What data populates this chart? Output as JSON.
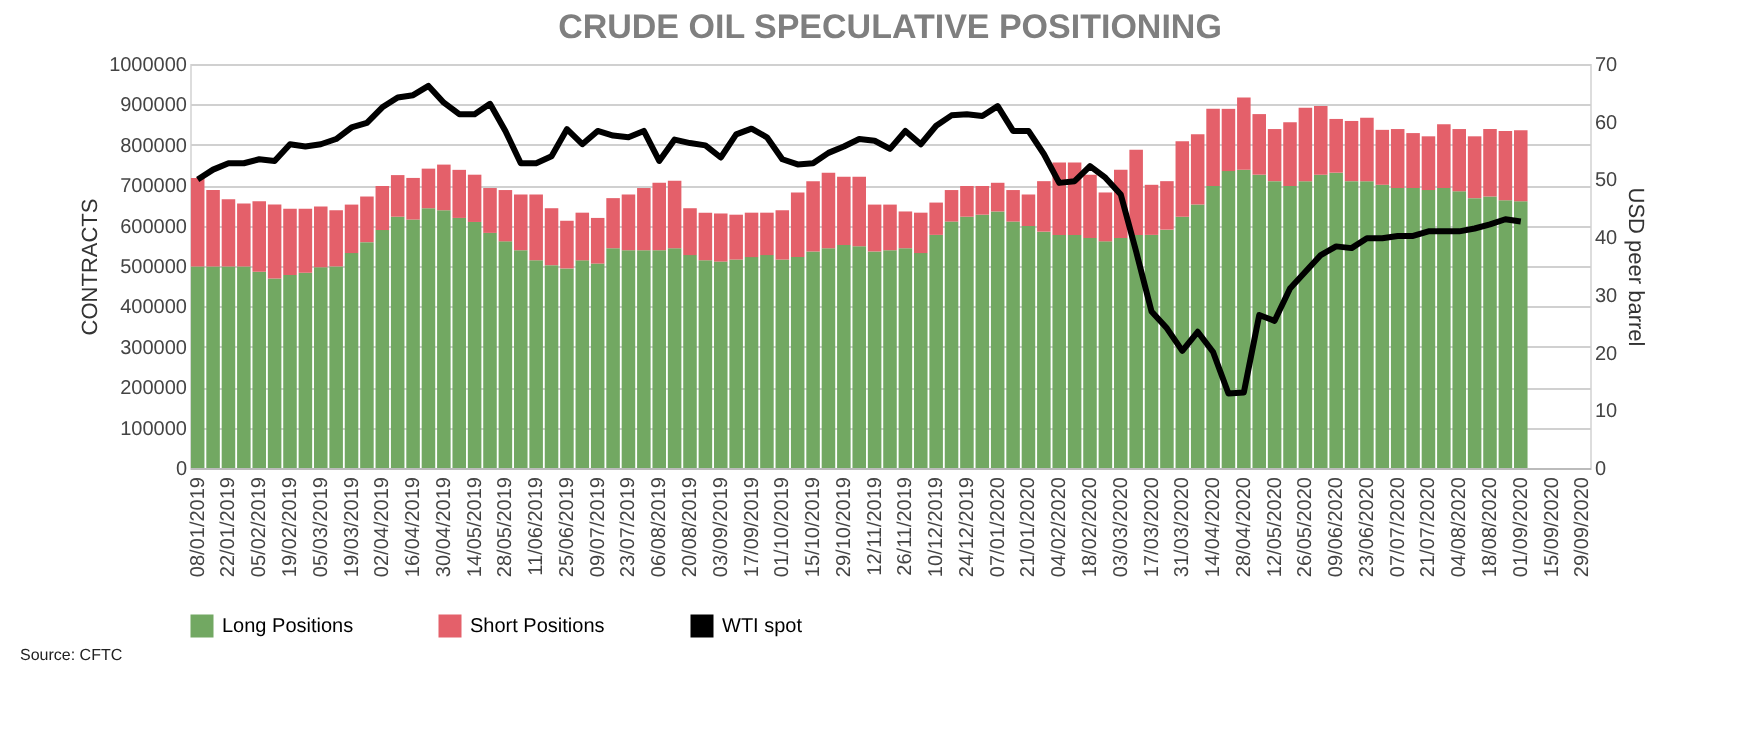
{
  "chart_data": {
    "type": "bar",
    "title": "CRUDE OIL SPECULATIVE POSITIONING",
    "ylabel": "CONTRACTS",
    "y2label": "USD peer barrel",
    "stacked": true,
    "legend": "bottom",
    "grid": "y",
    "annotations": [
      "Source: CFTC"
    ],
    "ylim": [
      0,
      1000000
    ],
    "yticks": [
      0,
      100000,
      200000,
      300000,
      400000,
      500000,
      600000,
      700000,
      800000,
      900000,
      1000000
    ],
    "y2lim": [
      0,
      70
    ],
    "y2ticks": [
      0,
      10,
      20,
      30,
      40,
      50,
      60,
      70
    ],
    "categories": [
      "08/01/2019",
      null,
      "22/01/2019",
      null,
      "05/02/2019",
      null,
      "19/02/2019",
      null,
      "05/03/2019",
      null,
      "19/03/2019",
      null,
      "02/04/2019",
      null,
      "16/04/2019",
      null,
      "30/04/2019",
      null,
      "14/05/2019",
      null,
      "28/05/2019",
      null,
      "11/06/2019",
      null,
      "25/06/2019",
      null,
      "09/07/2019",
      null,
      "23/07/2019",
      null,
      "06/08/2019",
      null,
      "20/08/2019",
      null,
      "03/09/2019",
      null,
      "17/09/2019",
      null,
      "01/10/2019",
      null,
      "15/10/2019",
      null,
      "29/10/2019",
      null,
      "12/11/2019",
      null,
      "26/11/2019",
      null,
      "10/12/2019",
      null,
      "24/12/2019",
      null,
      "07/01/2020",
      null,
      "21/01/2020",
      null,
      "04/02/2020",
      null,
      "18/02/2020",
      null,
      "03/03/2020",
      null,
      "17/03/2020",
      null,
      "31/03/2020",
      null,
      "14/04/2020",
      null,
      "28/04/2020",
      null,
      "12/05/2020",
      null,
      "26/05/2020",
      null,
      "09/06/2020",
      null,
      "23/06/2020",
      null,
      "07/07/2020",
      null,
      "21/07/2020",
      null,
      "04/08/2020",
      null,
      "18/08/2020",
      null,
      "01/09/2020",
      null,
      "15/09/2020",
      null,
      "29/09/2020"
    ],
    "series": [
      {
        "name": "Long Positions",
        "color": "#72a862",
        "values": [
          499000,
          499000,
          499000,
          499000,
          486000,
          469000,
          478000,
          483000,
          497000,
          499000,
          532000,
          559000,
          589000,
          622000,
          615000,
          643000,
          638000,
          619000,
          609000,
          582000,
          561000,
          539000,
          514000,
          502000,
          494000,
          514000,
          506000,
          544000,
          539000,
          539000,
          539000,
          544000,
          527000,
          514000,
          511000,
          516000,
          522000,
          527000,
          516000,
          522000,
          536000,
          544000,
          552000,
          549000,
          536000,
          539000,
          544000,
          532000,
          577000,
          610000,
          622000,
          627000,
          635000,
          610000,
          599000,
          585000,
          577000,
          577000,
          569000,
          561000,
          569000,
          577000,
          577000,
          590000,
          622000,
          652000,
          698000,
          735000,
          738000,
          726000,
          710000,
          698000,
          710000,
          726000,
          731000,
          710000,
          710000,
          701000,
          693000,
          693000,
          688000,
          693000,
          685000,
          668000,
          672000,
          663000,
          660000,
          null,
          null,
          null,
          null
        ]
      },
      {
        "name": "Short Positions",
        "color": "#e4606a",
        "values": [
          219000,
          189000,
          166000,
          156000,
          174000,
          183000,
          164000,
          159000,
          150000,
          139000,
          120000,
          113000,
          109000,
          103000,
          103000,
          98000,
          113000,
          119000,
          117000,
          111000,
          127000,
          138000,
          163000,
          141000,
          118000,
          118000,
          113000,
          124000,
          138000,
          154000,
          167000,
          167000,
          116000,
          118000,
          119000,
          111000,
          110000,
          105000,
          122000,
          160000,
          174000,
          187000,
          169000,
          172000,
          116000,
          113000,
          91000,
          100000,
          80000,
          78000,
          76000,
          71000,
          71000,
          78000,
          78000,
          125000,
          179000,
          179000,
          157000,
          121000,
          169000,
          211000,
          124000,
          120000,
          187000,
          174000,
          191000,
          154000,
          179000,
          150000,
          129000,
          158000,
          182000,
          170000,
          133000,
          149000,
          157000,
          136000,
          146000,
          136000,
          133000,
          158000,
          154000,
          153000,
          167000,
          171000,
          176000,
          null,
          null,
          null,
          null
        ]
      },
      {
        "name": "WTI spot",
        "type": "line",
        "axis": "y2",
        "color": "#000000",
        "values": [
          50.0,
          51.7,
          52.8,
          52.8,
          53.5,
          53.2,
          56.1,
          55.7,
          56.1,
          57.0,
          59.0,
          59.8,
          62.5,
          64.2,
          64.6,
          66.2,
          63.3,
          61.3,
          61.3,
          63.1,
          58.4,
          52.8,
          52.8,
          54.0,
          58.7,
          56.1,
          58.4,
          57.6,
          57.3,
          58.4,
          53.2,
          56.9,
          56.3,
          55.9,
          53.8,
          57.8,
          58.8,
          57.3,
          53.5,
          52.6,
          52.8,
          54.6,
          55.7,
          57.0,
          56.7,
          55.3,
          58.4,
          56.1,
          59.3,
          61.1,
          61.3,
          61.0,
          62.7,
          58.4,
          58.4,
          54.4,
          49.4,
          49.7,
          52.3,
          50.3,
          47.4,
          37.5,
          27.1,
          24.2,
          20.3,
          23.6,
          20.1,
          12.9,
          13.1,
          26.5,
          25.5,
          31.1,
          34.0,
          36.9,
          38.4,
          38.1,
          39.8,
          39.8,
          40.2,
          40.2,
          41.0,
          41.0,
          41.0,
          41.5,
          42.2,
          43.1,
          42.7,
          null,
          null,
          null,
          null
        ]
      }
    ]
  }
}
